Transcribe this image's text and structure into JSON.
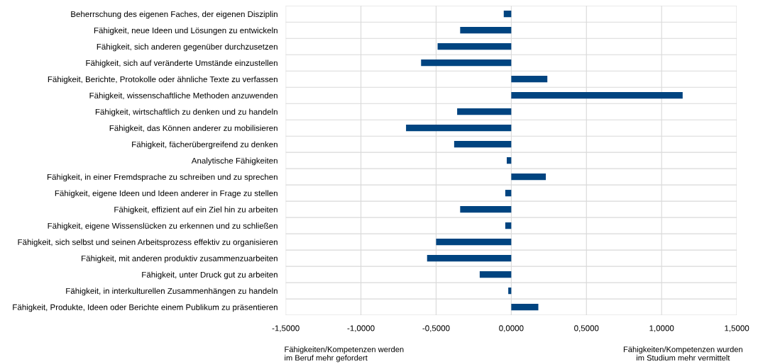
{
  "chart_data": {
    "type": "bar",
    "orientation": "horizontal",
    "categories": [
      "Beherrschung des eigenen Faches, der eigenen Disziplin",
      "Fähigkeit, neue Ideen und Lösungen zu entwickeln",
      "Fähigkeit, sich anderen gegenüber durchzusetzen",
      "Fähigkeit, sich auf veränderte Umstände einzustellen",
      "Fähigkeit, Berichte, Protokolle oder ähnliche Texte zu verfassen",
      "Fähigkeit, wissenschaftliche Methoden anzuwenden",
      "Fähigkeit, wirtschaftlich zu denken und zu handeln",
      "Fähigkeit, das Können anderer zu mobilisieren",
      "Fähigkeit, fächerübergreifend zu denken",
      "Analytische Fähigkeiten",
      "Fähigkeit, in einer Fremdsprache zu schreiben und zu sprechen",
      "Fähigkeit, eigene Ideen und Ideen anderer in Frage zu stellen",
      "Fähigkeit, effizient auf ein Ziel hin zu arbeiten",
      "Fähigkeit, eigene Wissenslücken zu erkennen und zu schließen",
      "Fähigkeit, sich selbst und seinen Arbeitsprozess effektiv zu organisieren",
      "Fähigkeit, mit anderen produktiv zusammenzuarbeiten",
      "Fähigkeit, unter Druck gut zu arbeiten",
      "Fähigkeit, in interkulturellen Zusammenhängen zu handeln",
      "Fähigkeit, Produkte, Ideen oder Berichte einem Publikum zu präsentieren"
    ],
    "values": [
      -0.05,
      -0.34,
      -0.49,
      -0.6,
      0.24,
      1.14,
      -0.36,
      -0.7,
      -0.38,
      -0.03,
      0.23,
      -0.04,
      -0.34,
      -0.04,
      -0.5,
      -0.56,
      -0.21,
      -0.02,
      0.18
    ],
    "color": "#004480",
    "xlim": [
      -1.5,
      1.5
    ],
    "xticks": [
      {
        "value": -1.5,
        "label": "-1,5000"
      },
      {
        "value": -1.0,
        "label": "-1,0000"
      },
      {
        "value": -0.5,
        "label": "-0,5000"
      },
      {
        "value": 0,
        "label": "0,0000"
      },
      {
        "value": 0.5,
        "label": "0,5000"
      },
      {
        "value": 1.0,
        "label": "1,0000"
      },
      {
        "value": 1.5,
        "label": "1,5000"
      }
    ],
    "grid": true,
    "annotations": [
      "Fähigkeiten/Kompetenzen werden\nim Beruf mehr gefordert",
      "Fähigkeiten/Kompetenzen wurden\nim Studium mehr vermittelt"
    ]
  }
}
